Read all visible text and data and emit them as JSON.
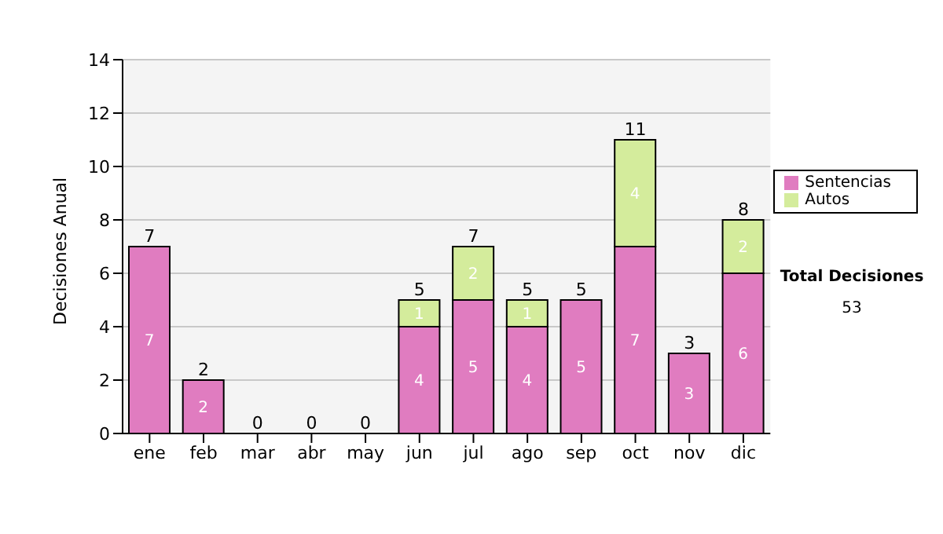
{
  "chart_data": {
    "type": "bar",
    "ylabel": "Decisiones Anual",
    "categories": [
      "ene",
      "feb",
      "mar",
      "abr",
      "may",
      "jun",
      "jul",
      "ago",
      "sep",
      "oct",
      "nov",
      "dic"
    ],
    "series": [
      {
        "name": "Sentencias",
        "color": "#e07cc0",
        "values": [
          7,
          2,
          0,
          0,
          0,
          4,
          5,
          4,
          5,
          7,
          3,
          6
        ],
        "value_labels": [
          "7",
          "2",
          null,
          null,
          null,
          "4",
          "5",
          "4",
          "5",
          "7",
          "3",
          "6"
        ]
      },
      {
        "name": "Autos",
        "color": "#d4ec9c",
        "values": [
          0,
          0,
          0,
          0,
          0,
          1,
          2,
          1,
          0,
          4,
          0,
          2
        ],
        "value_labels": [
          null,
          null,
          null,
          null,
          null,
          "1",
          "2",
          "1",
          null,
          "4",
          null,
          "2"
        ]
      }
    ],
    "stacked": true,
    "totals": [
      "7",
      "2",
      "0",
      "0",
      "0",
      "5",
      "7",
      "5",
      "5",
      "11",
      "3",
      "8"
    ],
    "ylim": [
      0,
      14
    ],
    "yticks": [
      0,
      2,
      4,
      6,
      8,
      10,
      12,
      14
    ],
    "grid": "y",
    "legend": "right",
    "annotations": [
      "Total Decisiones",
      "53"
    ]
  }
}
